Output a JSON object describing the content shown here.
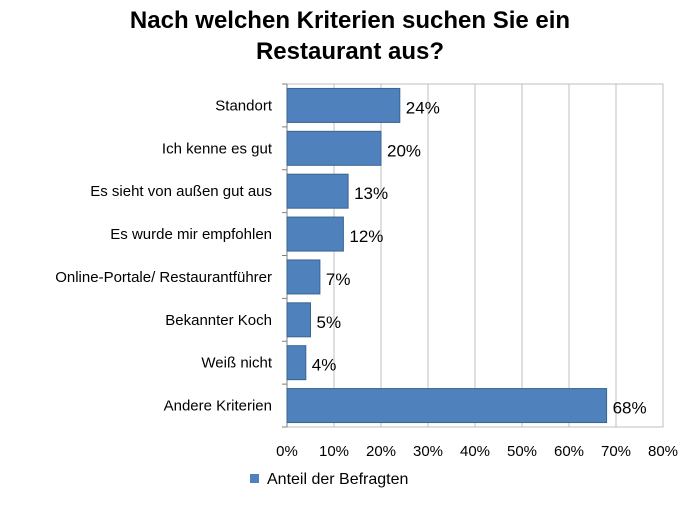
{
  "chart_data": {
    "type": "bar",
    "orientation": "horizontal",
    "title_line1": "Nach welchen Kriterien suchen Sie ein",
    "title_line2": "Restaurant aus?",
    "categories": [
      "Standort",
      "Ich kenne es gut",
      "Es sieht von außen gut aus",
      "Es wurde mir empfohlen",
      "Online-Portale/ Restaurantführer",
      "Bekannter Koch",
      "Weiß nicht",
      "Andere Kriterien"
    ],
    "series": [
      {
        "name": "Anteil der Befragten",
        "values": [
          24,
          20,
          13,
          12,
          7,
          5,
          4,
          68
        ],
        "labels": [
          "24%",
          "20%",
          "13%",
          "12%",
          "7%",
          "5%",
          "4%",
          "68%"
        ]
      }
    ],
    "xlim": [
      0,
      80
    ],
    "xticks": [
      0,
      10,
      20,
      30,
      40,
      50,
      60,
      70,
      80
    ],
    "xtick_labels": [
      "0%",
      "10%",
      "20%",
      "30%",
      "40%",
      "50%",
      "60%",
      "70%",
      "80%"
    ],
    "grid": true,
    "legend_position": "bottom",
    "colors": {
      "bar": "#4f81bd",
      "bar_edge": "#3a6592",
      "grid": "#bfbfbf",
      "axis": "#808080"
    }
  }
}
